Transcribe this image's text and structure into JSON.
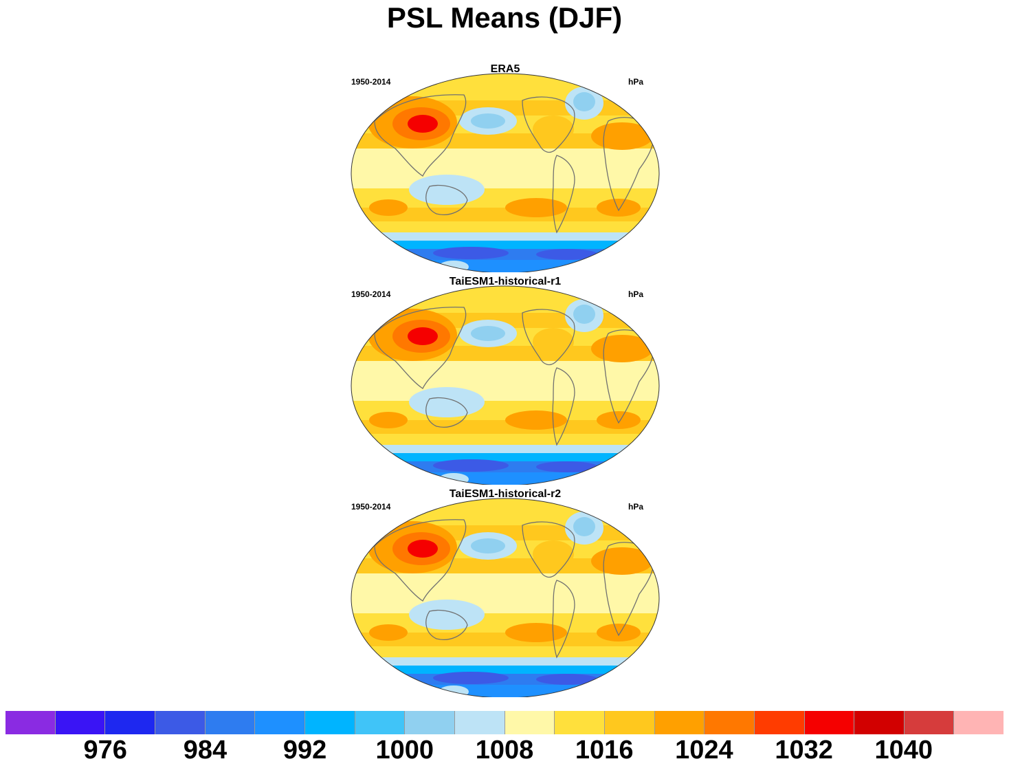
{
  "title": "PSL Means (DJF)",
  "colors": {
    "coastline": "#707070",
    "outline": "#333333",
    "background": "#ffffff"
  },
  "panels": [
    {
      "title": "ERA5",
      "left_label": "1950-2014",
      "right_label": "hPa"
    },
    {
      "title": "TaiESM1-historical-r1",
      "left_label": "1950-2014",
      "right_label": "hPa"
    },
    {
      "title": "TaiESM1-historical-r2",
      "left_label": "1950-2014",
      "right_label": "hPa"
    }
  ],
  "colorbar": {
    "colors": [
      "#8a2be2",
      "#3a14f5",
      "#1e28f0",
      "#3c5ae6",
      "#2e7cf0",
      "#1e90ff",
      "#00b4ff",
      "#40c4f8",
      "#90d0f0",
      "#bde3f6",
      "#fff8a8",
      "#ffe03c",
      "#ffc81e",
      "#ffa000",
      "#ff7800",
      "#ff3c00",
      "#f50000",
      "#d20000",
      "#d63c3c",
      "#ffb4b4"
    ],
    "labels": [
      "976",
      "984",
      "992",
      "1000",
      "1008",
      "1016",
      "1024",
      "1032",
      "1040"
    ]
  }
}
